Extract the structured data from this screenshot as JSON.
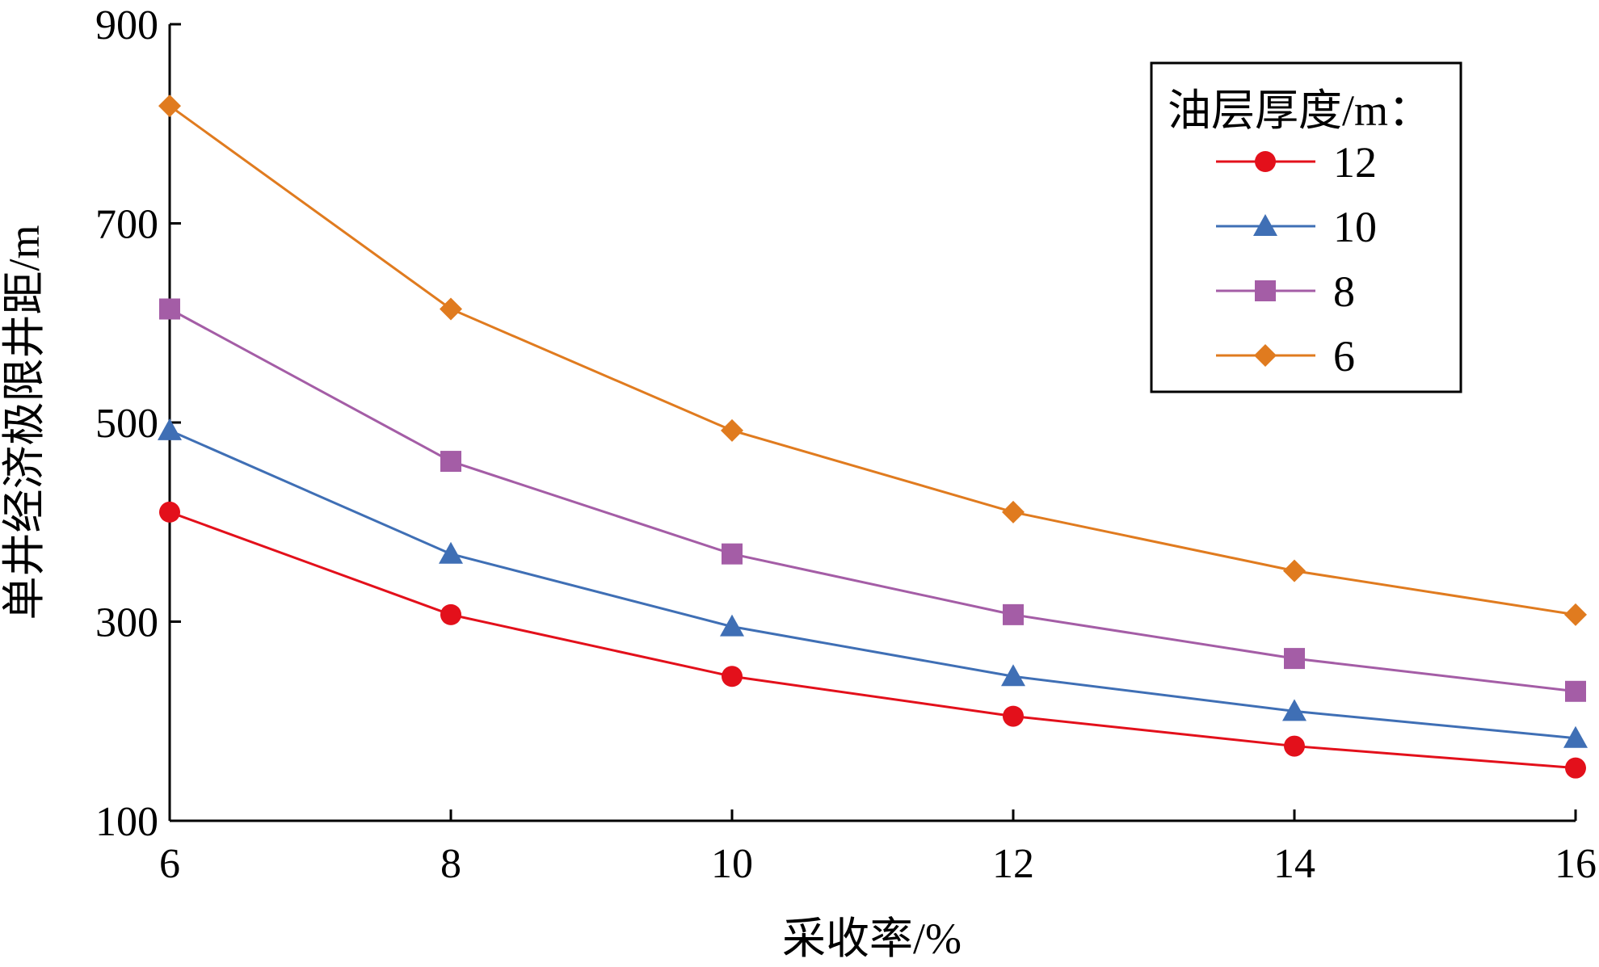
{
  "chart_data": {
    "type": "line",
    "title": "",
    "xlabel": "采收率/%",
    "ylabel": "单井经济极限井距/m",
    "x": [
      6,
      8,
      10,
      12,
      14,
      16
    ],
    "xticks": [
      "6",
      "8",
      "10",
      "12",
      "14",
      "16"
    ],
    "xlim": [
      6,
      16
    ],
    "ylim": [
      100,
      900
    ],
    "yticks": [
      "100",
      "300",
      "500",
      "700",
      "900"
    ],
    "ytick_values": [
      100,
      300,
      500,
      700,
      900
    ],
    "grid": false,
    "legend": {
      "title": "油层厚度/m：",
      "placement": "top-right"
    },
    "series": [
      {
        "name": "12",
        "values": [
          410,
          307,
          245,
          205,
          175,
          153
        ],
        "color": "#e3101b",
        "marker": "circle"
      },
      {
        "name": "10",
        "values": [
          492,
          368,
          295,
          245,
          210,
          183
        ],
        "color": "#3f6fb5",
        "marker": "triangle"
      },
      {
        "name": "8",
        "values": [
          614,
          461,
          368,
          307,
          263,
          230
        ],
        "color": "#a45da6",
        "marker": "square"
      },
      {
        "name": "6",
        "values": [
          818,
          614,
          492,
          410,
          351,
          307
        ],
        "color": "#e07b1f",
        "marker": "diamond"
      }
    ]
  }
}
